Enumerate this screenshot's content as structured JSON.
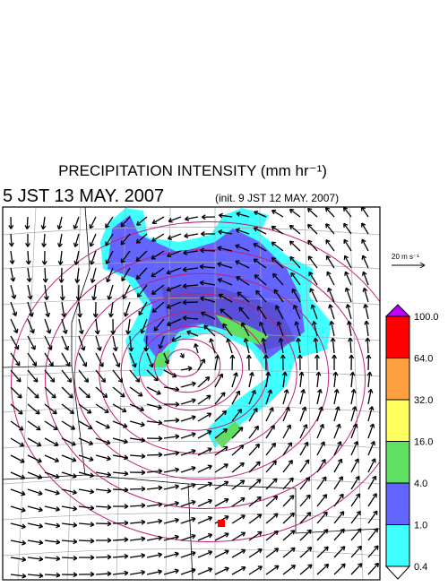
{
  "header": {
    "title": "PRECIPITATION INTENSITY (mm hr⁻¹)",
    "valid_time": "5 JST 13 MAY. 2007",
    "init_time": "(init. 9 JST 12 MAY. 2007)"
  },
  "wind_scale": {
    "label": "20 m s⁻¹"
  },
  "legend": {
    "ticks": [
      {
        "value": 100,
        "label": "100.0"
      },
      {
        "value": 64,
        "label": "64.0"
      },
      {
        "value": 32,
        "label": "32.0"
      },
      {
        "value": 16,
        "label": "16.0"
      },
      {
        "value": 4,
        "label": "4.0"
      },
      {
        "value": 1,
        "label": "1.0"
      },
      {
        "value": 0.4,
        "label": "0.4"
      }
    ],
    "colors": [
      "#ff0000",
      "#ffa040",
      "#ffff60",
      "#60e060",
      "#6464ff",
      "#40ffff"
    ],
    "over_color": "#c000ff",
    "under_color": "#ffffff"
  }
}
